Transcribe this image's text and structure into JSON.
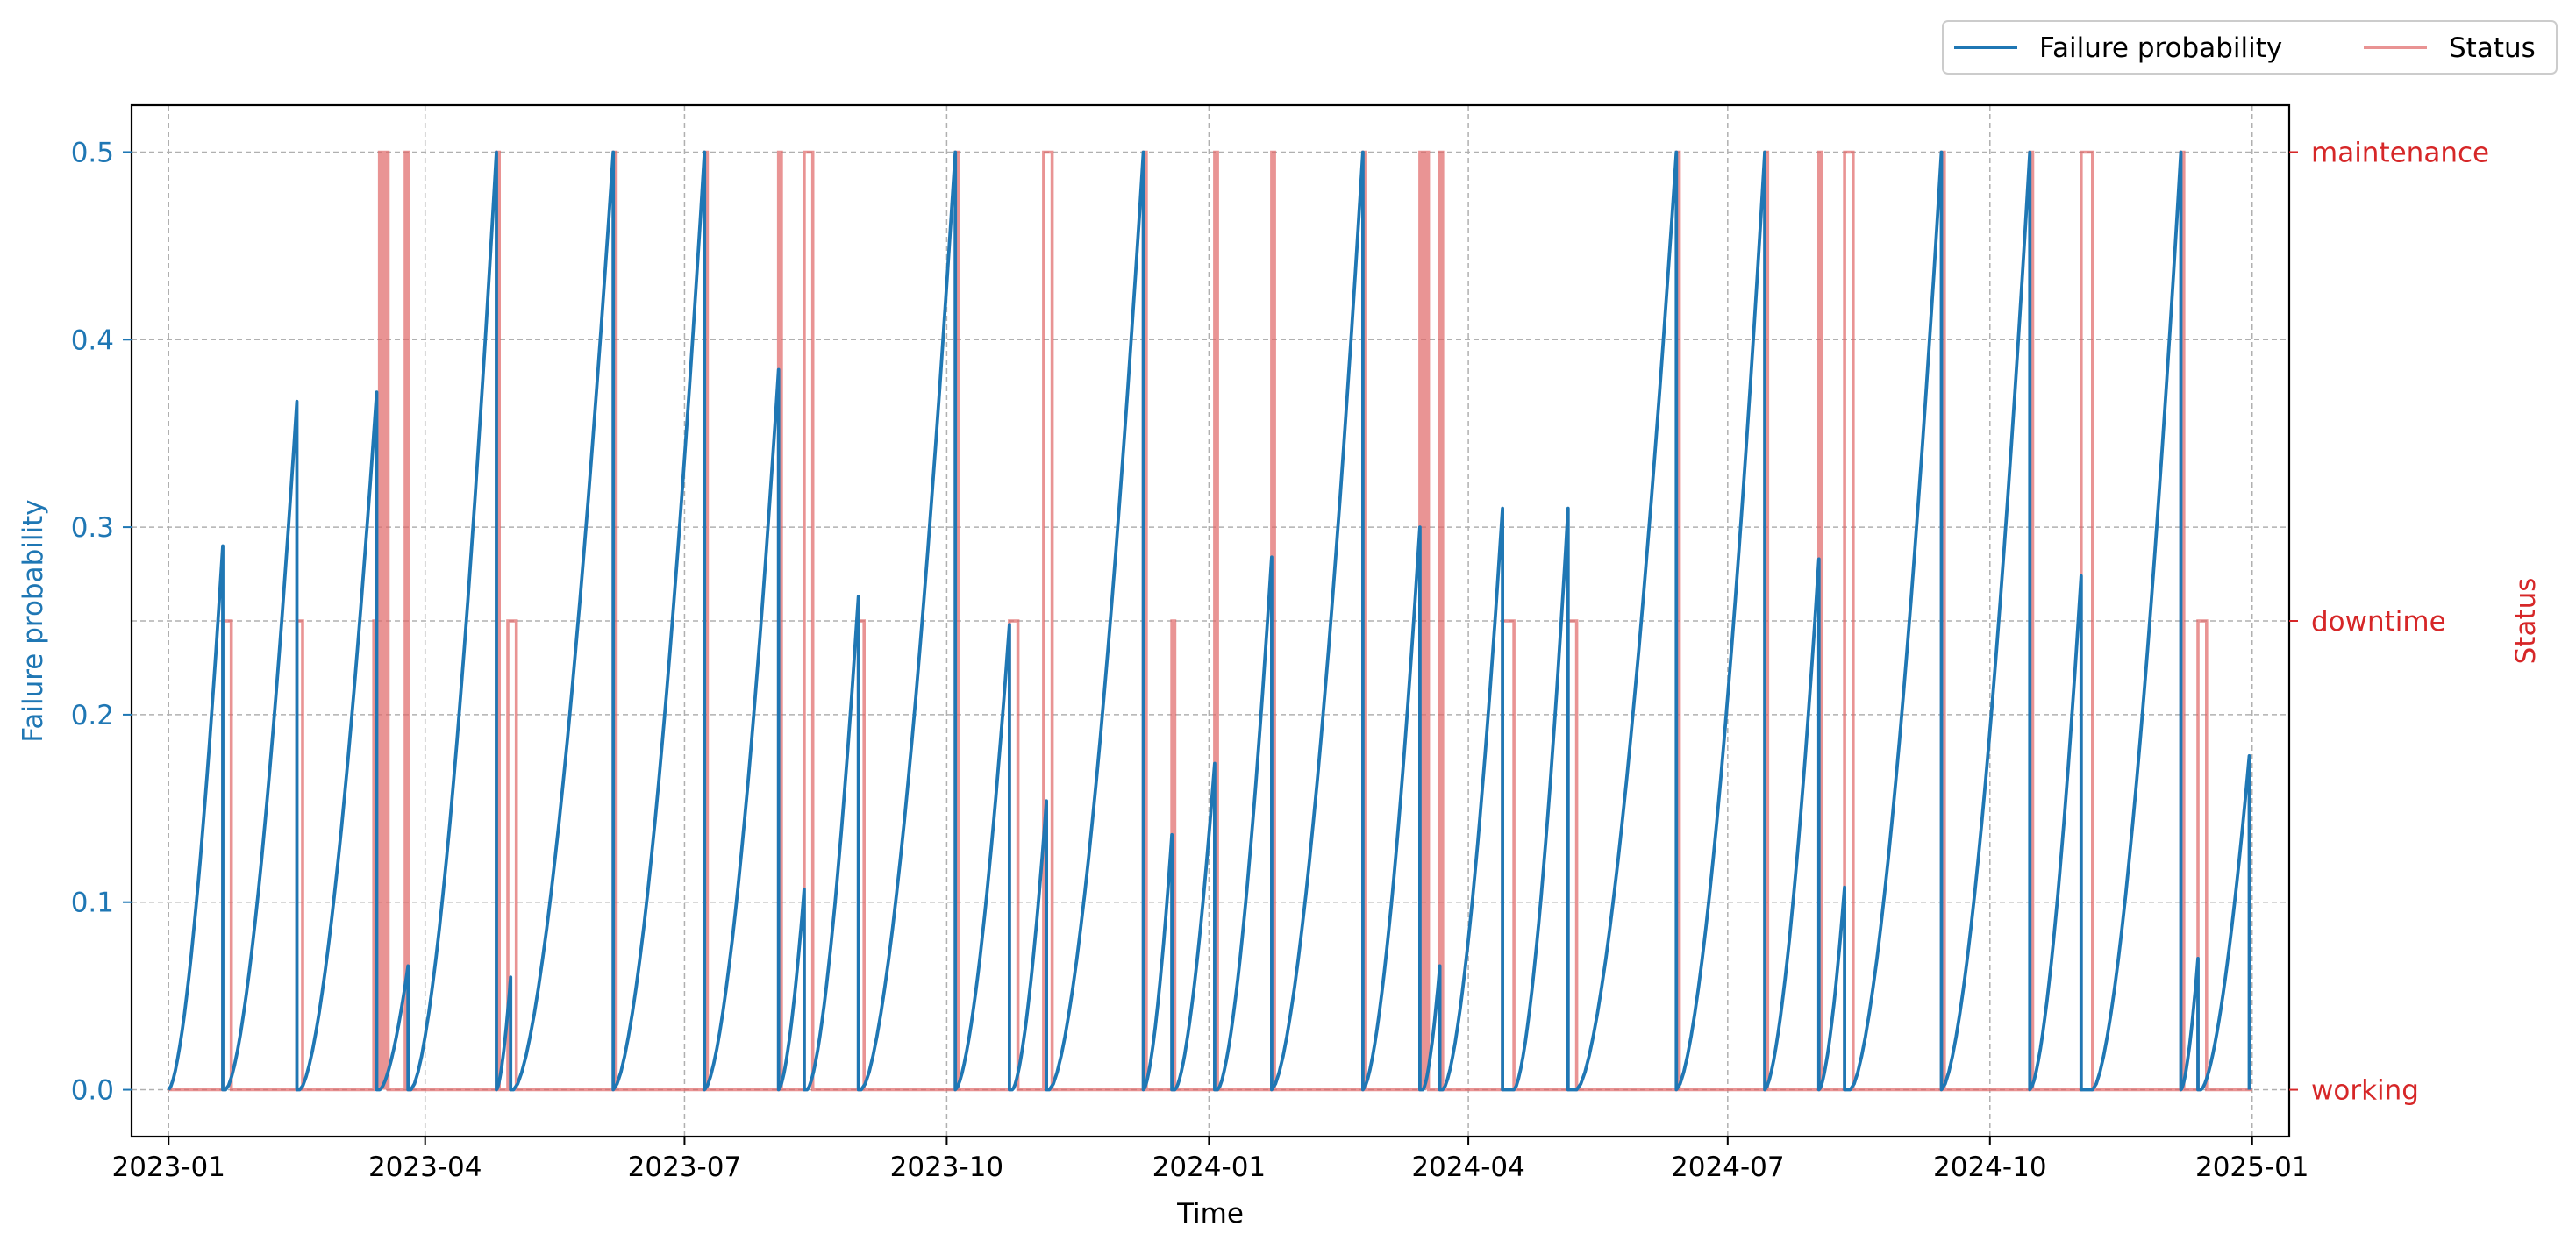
{
  "chart_data": {
    "type": "line",
    "xlabel": "Time",
    "ylabel_left": "Failure probability",
    "ylabel_right": "Status",
    "x_range": [
      "2022-12-19",
      "2025-01-14"
    ],
    "ylim_left": [
      -0.025,
      0.525
    ],
    "yticks_left": [
      0.0,
      0.1,
      0.2,
      0.3,
      0.4,
      0.5
    ],
    "ytick_labels_left": [
      "0.0",
      "0.1",
      "0.2",
      "0.3",
      "0.4",
      "0.5"
    ],
    "xticks": [
      "2023-01-01",
      "2023-04-01",
      "2023-07-01",
      "2023-10-01",
      "2024-01-01",
      "2024-04-01",
      "2024-07-01",
      "2024-10-01",
      "2025-01-01"
    ],
    "xtick_labels": [
      "2023-01",
      "2023-04",
      "2023-07",
      "2023-10",
      "2024-01",
      "2024-04",
      "2024-07",
      "2024-10",
      "2025-01"
    ],
    "status_categories": [
      "working",
      "downtime",
      "maintenance"
    ],
    "grid": true,
    "legend_location": "top-right, outside plot",
    "colors": {
      "failure_probability": "#1f77b4",
      "status": "#e06666",
      "status_axis": "#d62728"
    },
    "series": [
      {
        "name": "Failure probability",
        "axis": "left",
        "style": "sawtooth",
        "segments": [
          {
            "start": "2023-01-01",
            "end": "2023-01-20",
            "peak": 0.29
          },
          {
            "start": "2023-01-21",
            "end": "2023-02-15",
            "peak": 0.367
          },
          {
            "start": "2023-02-16",
            "end": "2023-03-15",
            "peak": 0.372
          },
          {
            "start": "2023-03-16",
            "end": "2023-03-26",
            "peak": 0.066
          },
          {
            "start": "2023-03-27",
            "end": "2023-04-26",
            "peak": 0.5
          },
          {
            "start": "2023-04-26",
            "end": "2023-05-01",
            "peak": 0.06
          },
          {
            "start": "2023-05-02",
            "end": "2023-06-06",
            "peak": 0.5
          },
          {
            "start": "2023-06-06",
            "end": "2023-07-08",
            "peak": 0.5
          },
          {
            "start": "2023-07-08",
            "end": "2023-08-03",
            "peak": 0.384
          },
          {
            "start": "2023-08-03",
            "end": "2023-08-12",
            "peak": 0.107
          },
          {
            "start": "2023-08-13",
            "end": "2023-08-31",
            "peak": 0.263
          },
          {
            "start": "2023-09-01",
            "end": "2023-10-04",
            "peak": 0.5
          },
          {
            "start": "2023-10-04",
            "end": "2023-10-23",
            "peak": 0.248
          },
          {
            "start": "2023-10-24",
            "end": "2023-11-05",
            "peak": 0.154
          },
          {
            "start": "2023-11-06",
            "end": "2023-12-09",
            "peak": 0.5
          },
          {
            "start": "2023-12-09",
            "end": "2023-12-19",
            "peak": 0.136
          },
          {
            "start": "2023-12-20",
            "end": "2024-01-03",
            "peak": 0.174
          },
          {
            "start": "2024-01-04",
            "end": "2024-01-23",
            "peak": 0.284
          },
          {
            "start": "2024-01-23",
            "end": "2024-02-24",
            "peak": 0.5
          },
          {
            "start": "2024-02-24",
            "end": "2024-03-15",
            "peak": 0.3
          },
          {
            "start": "2024-03-16",
            "end": "2024-03-22",
            "peak": 0.066
          },
          {
            "start": "2024-03-23",
            "end": "2024-04-13",
            "peak": 0.31
          },
          {
            "start": "2024-04-17",
            "end": "2024-05-06",
            "peak": 0.31
          },
          {
            "start": "2024-05-09",
            "end": "2024-06-13",
            "peak": 0.5
          },
          {
            "start": "2024-06-13",
            "end": "2024-07-14",
            "peak": 0.5
          },
          {
            "start": "2024-07-14",
            "end": "2024-08-02",
            "peak": 0.283
          },
          {
            "start": "2024-08-02",
            "end": "2024-08-11",
            "peak": 0.108
          },
          {
            "start": "2024-08-13",
            "end": "2024-09-14",
            "peak": 0.5
          },
          {
            "start": "2024-09-14",
            "end": "2024-10-15",
            "peak": 0.5
          },
          {
            "start": "2024-10-15",
            "end": "2024-11-02",
            "peak": 0.274
          },
          {
            "start": "2024-11-06",
            "end": "2024-12-07",
            "peak": 0.5
          },
          {
            "start": "2024-12-07",
            "end": "2024-12-13",
            "peak": 0.07
          },
          {
            "start": "2024-12-14",
            "end": "2024-12-31",
            "peak": 0.178
          }
        ]
      },
      {
        "name": "Status",
        "axis": "right",
        "style": "step",
        "base": "working",
        "events": [
          {
            "start": "2023-01-20",
            "end": "2023-01-23",
            "state": "downtime"
          },
          {
            "start": "2023-02-15",
            "end": "2023-02-17",
            "state": "downtime"
          },
          {
            "start": "2023-03-14",
            "end": "2023-03-16",
            "state": "downtime"
          },
          {
            "start": "2023-03-16",
            "end": "2023-03-17",
            "state": "maintenance"
          },
          {
            "start": "2023-03-17",
            "end": "2023-03-18",
            "state": "downtime"
          },
          {
            "start": "2023-03-18",
            "end": "2023-03-19",
            "state": "maintenance"
          },
          {
            "start": "2023-03-25",
            "end": "2023-03-26",
            "state": "maintenance"
          },
          {
            "start": "2023-04-26",
            "end": "2023-04-27",
            "state": "maintenance"
          },
          {
            "start": "2023-04-30",
            "end": "2023-05-03",
            "state": "downtime"
          },
          {
            "start": "2023-06-06",
            "end": "2023-06-07",
            "state": "maintenance"
          },
          {
            "start": "2023-07-08",
            "end": "2023-07-09",
            "state": "maintenance"
          },
          {
            "start": "2023-08-03",
            "end": "2023-08-04",
            "state": "maintenance"
          },
          {
            "start": "2023-08-12",
            "end": "2023-08-15",
            "state": "maintenance"
          },
          {
            "start": "2023-08-31",
            "end": "2023-09-02",
            "state": "downtime"
          },
          {
            "start": "2023-10-04",
            "end": "2023-10-05",
            "state": "maintenance"
          },
          {
            "start": "2023-10-23",
            "end": "2023-10-26",
            "state": "downtime"
          },
          {
            "start": "2023-11-04",
            "end": "2023-11-07",
            "state": "maintenance"
          },
          {
            "start": "2023-12-09",
            "end": "2023-12-10",
            "state": "maintenance"
          },
          {
            "start": "2023-12-19",
            "end": "2023-12-20",
            "state": "downtime"
          },
          {
            "start": "2024-01-03",
            "end": "2024-01-04",
            "state": "maintenance"
          },
          {
            "start": "2024-01-23",
            "end": "2024-01-24",
            "state": "maintenance"
          },
          {
            "start": "2024-02-24",
            "end": "2024-02-25",
            "state": "maintenance"
          },
          {
            "start": "2024-03-15",
            "end": "2024-03-16",
            "state": "maintenance"
          },
          {
            "start": "2024-03-16",
            "end": "2024-03-17",
            "state": "downtime"
          },
          {
            "start": "2024-03-17",
            "end": "2024-03-18",
            "state": "maintenance"
          },
          {
            "start": "2024-03-22",
            "end": "2024-03-23",
            "state": "maintenance"
          },
          {
            "start": "2024-04-13",
            "end": "2024-04-17",
            "state": "downtime"
          },
          {
            "start": "2024-05-06",
            "end": "2024-05-09",
            "state": "downtime"
          },
          {
            "start": "2024-06-13",
            "end": "2024-06-14",
            "state": "maintenance"
          },
          {
            "start": "2024-07-14",
            "end": "2024-07-15",
            "state": "maintenance"
          },
          {
            "start": "2024-08-02",
            "end": "2024-08-03",
            "state": "maintenance"
          },
          {
            "start": "2024-08-11",
            "end": "2024-08-14",
            "state": "maintenance"
          },
          {
            "start": "2024-09-14",
            "end": "2024-09-15",
            "state": "maintenance"
          },
          {
            "start": "2024-10-15",
            "end": "2024-10-16",
            "state": "maintenance"
          },
          {
            "start": "2024-11-02",
            "end": "2024-11-06",
            "state": "maintenance"
          },
          {
            "start": "2024-12-07",
            "end": "2024-12-08",
            "state": "maintenance"
          },
          {
            "start": "2024-12-13",
            "end": "2024-12-16",
            "state": "downtime"
          }
        ]
      }
    ]
  }
}
